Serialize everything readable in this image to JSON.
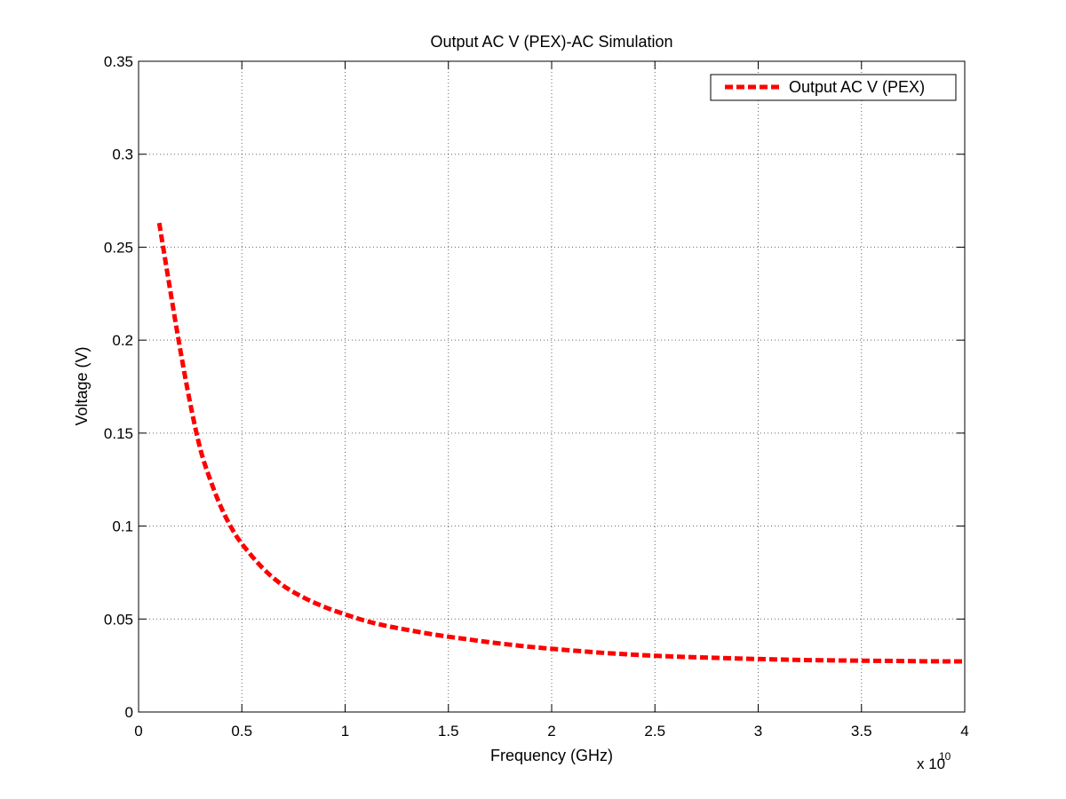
{
  "chart_data": {
    "type": "line",
    "title": "Output AC V (PEX)-AC Simulation",
    "xlabel": "Frequency (GHz)",
    "ylabel": "Voltage (V)",
    "x_exponent_label": "x 10",
    "x_exponent_power": "10",
    "xlim": [
      0,
      4
    ],
    "ylim": [
      0,
      0.35
    ],
    "xticks": [
      0,
      0.5,
      1,
      1.5,
      2,
      2.5,
      3,
      3.5,
      4
    ],
    "xtick_labels": [
      "0",
      "0.5",
      "1",
      "1.5",
      "2",
      "2.5",
      "3",
      "3.5",
      "4"
    ],
    "yticks": [
      0,
      0.05,
      0.1,
      0.15,
      0.2,
      0.25,
      0.3,
      0.35
    ],
    "ytick_labels": [
      "0",
      "0.05",
      "0.1",
      "0.15",
      "0.2",
      "0.25",
      "0.3",
      "0.35"
    ],
    "grid": true,
    "legend_position": "top-right",
    "series": [
      {
        "name": "Output AC V (PEX)",
        "color": "#ff0000",
        "line_style": "dashed",
        "x": [
          0.1,
          0.15,
          0.2,
          0.25,
          0.3,
          0.35,
          0.4,
          0.45,
          0.5,
          0.6,
          0.7,
          0.8,
          0.9,
          1.0,
          1.1,
          1.2,
          1.3,
          1.4,
          1.5,
          1.6,
          1.7,
          1.8,
          1.9,
          2.0,
          2.2,
          2.4,
          2.6,
          2.8,
          3.0,
          3.2,
          3.4,
          3.6,
          3.8,
          4.0
        ],
        "y": [
          0.263,
          0.229,
          0.196,
          0.166,
          0.141,
          0.124,
          0.11,
          0.099,
          0.0905,
          0.0775,
          0.068,
          0.0615,
          0.0565,
          0.0525,
          0.049,
          0.0463,
          0.0442,
          0.0422,
          0.0405,
          0.039,
          0.0375,
          0.0362,
          0.035,
          0.034,
          0.0322,
          0.0308,
          0.0298,
          0.0291,
          0.0285,
          0.028,
          0.0277,
          0.0275,
          0.0273,
          0.0272
        ]
      }
    ]
  }
}
